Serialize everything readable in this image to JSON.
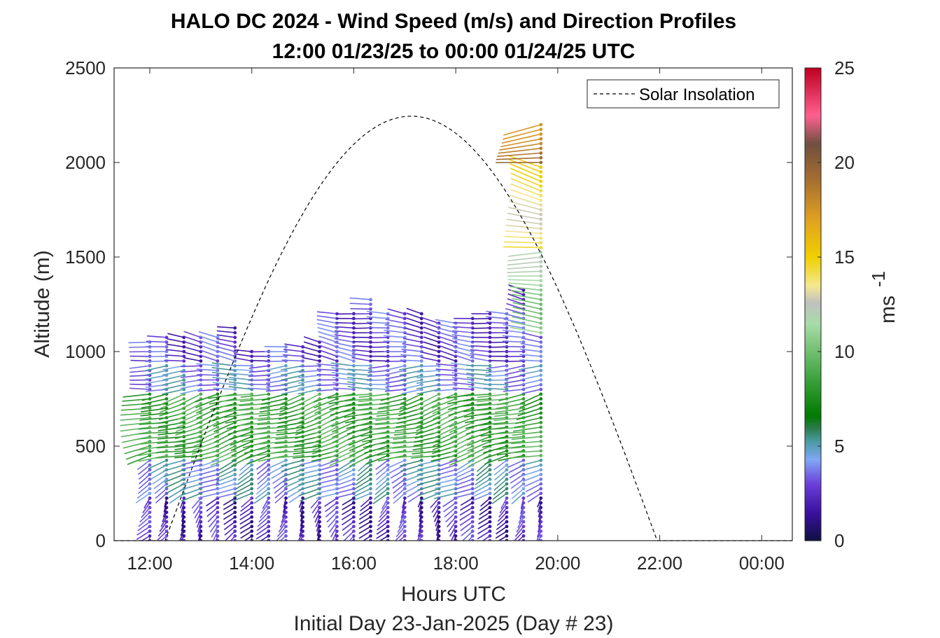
{
  "chart_data": {
    "type": "wind-barb-profile",
    "title": "HALO DC 2024 - Wind Speed (m/s) and Direction Profiles",
    "subtitle": "12:00 01/23/25 to 00:00 01/24/25  UTC",
    "xlabel": "Hours UTC",
    "xlabel2": "Initial Day 23-Jan-2025 (Day # 23)",
    "ylabel": "Altitude (m)",
    "x_ticks": [
      "12:00",
      "14:00",
      "16:00",
      "18:00",
      "20:00",
      "22:00",
      "00:00"
    ],
    "x_tick_hours": [
      12,
      14,
      16,
      18,
      20,
      22,
      24
    ],
    "xlim_hours": [
      11.3,
      24.6
    ],
    "y_ticks": [
      "0",
      "500",
      "1000",
      "1500",
      "2000",
      "2500"
    ],
    "y_tick_values": [
      0,
      500,
      1000,
      1500,
      2000,
      2500
    ],
    "ylim": [
      0,
      2500
    ],
    "colorbar": {
      "label": "ms",
      "label_exponent": "-1",
      "ticks": [
        "0",
        "5",
        "10",
        "15",
        "20",
        "25"
      ],
      "tick_values": [
        0,
        5,
        10,
        15,
        20,
        25
      ],
      "range": [
        0,
        25
      ],
      "stops": [
        {
          "v": 0,
          "color": "#101040"
        },
        {
          "v": 1.5,
          "color": "#3a10a0"
        },
        {
          "v": 3,
          "color": "#6a3ed8"
        },
        {
          "v": 4.3,
          "color": "#7fa7f5"
        },
        {
          "v": 5.3,
          "color": "#4a9aa0"
        },
        {
          "v": 6,
          "color": "#2a7a48"
        },
        {
          "v": 6.6,
          "color": "#007a00"
        },
        {
          "v": 8.5,
          "color": "#3aa03a"
        },
        {
          "v": 11.5,
          "color": "#a8dca8"
        },
        {
          "v": 12.6,
          "color": "#c0c0c0"
        },
        {
          "v": 13.5,
          "color": "#f5e890"
        },
        {
          "v": 15,
          "color": "#f0d000"
        },
        {
          "v": 17,
          "color": "#e0a020"
        },
        {
          "v": 19,
          "color": "#a87030"
        },
        {
          "v": 21,
          "color": "#705040"
        },
        {
          "v": 22.5,
          "color": "#ff6090"
        },
        {
          "v": 25,
          "color": "#c00020"
        }
      ]
    },
    "solar_insolation": {
      "name": "Solar Insolation",
      "sunrise_hour": 12.3,
      "sunset_hour": 21.95,
      "peak_altitude_equivalent": 2245
    },
    "profiles": {
      "times_hours": [
        12.0,
        12.33,
        12.67,
        13.0,
        13.33,
        13.67,
        14.0,
        14.33,
        14.67,
        15.0,
        15.33,
        15.67,
        16.0,
        16.33,
        16.67,
        17.0,
        17.33,
        17.67,
        18.0,
        18.33,
        18.67,
        19.0,
        19.33,
        19.67
      ],
      "top_altitudes_m": [
        1050,
        1080,
        1085,
        1080,
        1090,
        1125,
        1010,
        1005,
        1030,
        1040,
        1060,
        1200,
        1210,
        1280,
        1210,
        1200,
        1200,
        1170,
        1170,
        1180,
        1200,
        1200,
        1330,
        2220
      ],
      "level_spacing_m": 25,
      "layers": [
        {
          "from_m": 0,
          "to_m": 250,
          "speed_ms": 2.2,
          "dir_deg": 205
        },
        {
          "from_m": 250,
          "to_m": 450,
          "speed_ms": 4.5,
          "dir_deg": 230
        },
        {
          "from_m": 450,
          "to_m": 800,
          "speed_ms": 8.5,
          "dir_deg": 245
        },
        {
          "from_m": 800,
          "to_m": 950,
          "speed_ms": 4.2,
          "dir_deg": 265
        },
        {
          "from_m": 950,
          "to_m": 1100,
          "speed_ms": 2.8,
          "dir_deg": 285
        }
      ],
      "upper_layers_last_profile": [
        {
          "from_m": 1100,
          "to_m": 1550,
          "speed_ms": 11.0,
          "dir_deg": 275
        },
        {
          "from_m": 1550,
          "to_m": 2000,
          "speed_ms": 14.0,
          "dir_deg": 290
        },
        {
          "from_m": 2000,
          "to_m": 2250,
          "speed_ms": 18.5,
          "dir_deg": 260
        }
      ]
    }
  }
}
